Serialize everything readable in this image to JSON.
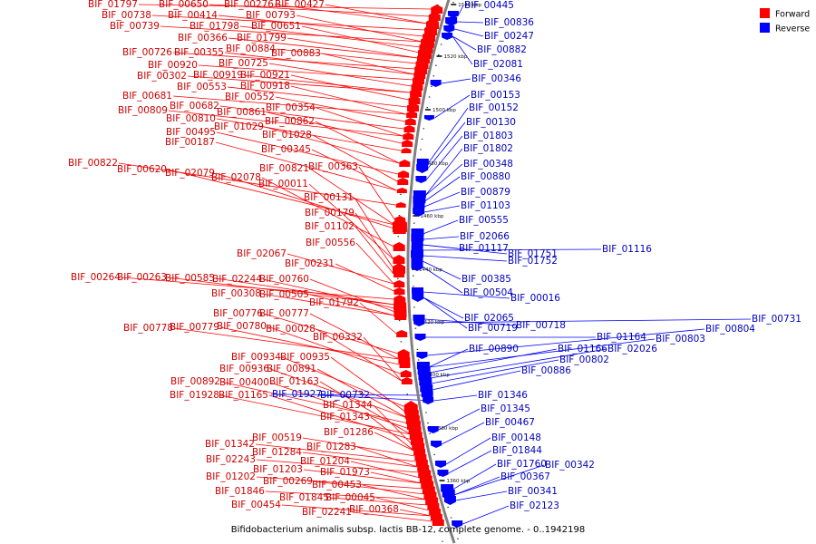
{
  "caption": "Bifidobacterium animalis subsp. lactis BB-12, complete genome. - 0..1942198",
  "legend": [
    {
      "label": "Forward",
      "color": "#ff0000"
    },
    {
      "label": "Reverse",
      "color": "#0000ff"
    }
  ],
  "colors": {
    "forward_label": "#cc0000",
    "reverse_label": "#0000bb",
    "backbone": "#808080"
  },
  "ticks": [
    "1540 kbp",
    "1520 kbp",
    "1500 kbp",
    "1480 kbp",
    "1460 kbp",
    "1440 kbp",
    "1420 kbp",
    "1400 kbp",
    "1380 kbp",
    "1360 kbp"
  ],
  "forward_genes": [
    "BIF_01797",
    "BIF_00650",
    "BIF_00276",
    "BIF_00427",
    "BIF_00738",
    "BIF_00414",
    "BIF_00793",
    "BIF_00739",
    "BIF_01798",
    "BIF_00651",
    "BIF_00366",
    "BIF_01799",
    "BIF_00884",
    "BIF_00726",
    "BIF_00355",
    "BIF_00883",
    "BIF_00920",
    "BIF_00725",
    "BIF_00302",
    "BIF_00919",
    "BIF_00921",
    "BIF_00553",
    "BIF_00918",
    "BIF_00681",
    "BIF_00552",
    "BIF_00682",
    "BIF_00354",
    "BIF_00809",
    "BIF_00861",
    "BIF_00810",
    "BIF_00862",
    "BIF_01029",
    "BIF_00495",
    "BIF_01028",
    "BIF_00187",
    "BIF_00345",
    "BIF_00822",
    "BIF_00363",
    "BIF_00620",
    "BIF_00821",
    "BIF_02079",
    "BIF_02078",
    "BIF_00011",
    "BIF_00131",
    "BIF_00179",
    "BIF_01102",
    "BIF_00556",
    "BIF_02067",
    "BIF_00231",
    "BIF_00264",
    "BIF_00263",
    "BIF_00585",
    "BIF_02244",
    "BIF_00760",
    "BIF_00308",
    "BIF_00505",
    "BIF_01792",
    "BIF_00776",
    "BIF_00777",
    "BIF_00778",
    "BIF_00779",
    "BIF_00780",
    "BIF_00028",
    "BIF_00332",
    "BIF_00934",
    "BIF_00935",
    "BIF_00936",
    "BIF_00891",
    "BIF_00892",
    "BIF_00400",
    "BIF_01163",
    "BIF_01928",
    "BIF_01165",
    "BIF_01344",
    "BIF_01343",
    "BIF_01286",
    "BIF_00519",
    "BIF_01342",
    "BIF_01283",
    "BIF_01284",
    "BIF_02243",
    "BIF_01204",
    "BIF_01203",
    "BIF_01973",
    "BIF_01202",
    "BIF_00269",
    "BIF_00453",
    "BIF_01846",
    "BIF_01845",
    "BIF_00045",
    "BIF_00454",
    "BIF_00368",
    "BIF_02241"
  ],
  "reverse_genes": [
    "BIF_00445",
    "BIF_00836",
    "BIF_00247",
    "BIF_00882",
    "BIF_02081",
    "BIF_00346",
    "BIF_00153",
    "BIF_00152",
    "BIF_00130",
    "BIF_01803",
    "BIF_01802",
    "BIF_00348",
    "BIF_00880",
    "BIF_00879",
    "BIF_01103",
    "BIF_00555",
    "BIF_02066",
    "BIF_01117",
    "BIF_01751",
    "BIF_01116",
    "BIF_01752",
    "BIF_00385",
    "BIF_00504",
    "BIF_00016",
    "BIF_02065",
    "BIF_00719",
    "BIF_00718",
    "BIF_00731",
    "BIF_01164",
    "BIF_00804",
    "BIF_00803",
    "BIF_00890",
    "BIF_01166",
    "BIF_02026",
    "BIF_00802",
    "BIF_00886",
    "BIF_01927",
    "BIF_00732",
    "BIF_01346",
    "BIF_01345",
    "BIF_00467",
    "BIF_00148",
    "BIF_01844",
    "BIF_01760",
    "BIF_00342",
    "BIF_00367",
    "BIF_00341",
    "BIF_02123"
  ]
}
